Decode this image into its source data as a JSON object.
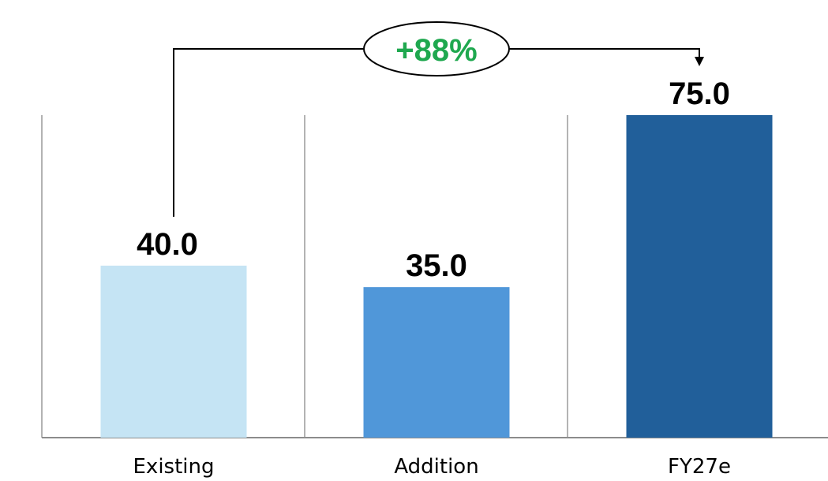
{
  "chart_data": {
    "type": "bar",
    "categories": [
      "Existing",
      "Addition",
      "FY27e"
    ],
    "values": [
      40.0,
      35.0,
      75.0
    ],
    "value_labels": [
      "40.0",
      "35.0",
      "75.0"
    ],
    "colors": [
      "#c5e4f4",
      "#5097d9",
      "#215f9a"
    ],
    "ylim": [
      0,
      75
    ],
    "grid": false,
    "annotation": {
      "text": "+88%",
      "from": "Existing",
      "to": "FY27e",
      "color": "#1fa84f"
    }
  }
}
